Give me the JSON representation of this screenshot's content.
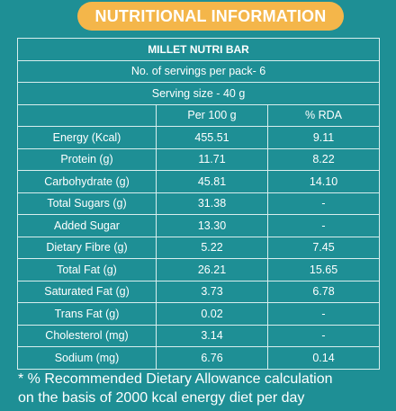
{
  "banner": "NUTRITIONAL INFORMATION",
  "product": "MILLET NUTRI BAR",
  "servings": "No. of servings per pack- 6",
  "serving_size": "Serving size - 40 g",
  "columns": {
    "per100": "Per 100 g",
    "rda": "% RDA"
  },
  "rows": [
    {
      "name": "Energy (Kcal)",
      "per100": "455.51",
      "rda": "9.11"
    },
    {
      "name": "Protein (g)",
      "per100": "11.71",
      "rda": "8.22"
    },
    {
      "name": "Carbohydrate (g)",
      "per100": "45.81",
      "rda": "14.10"
    },
    {
      "name": "Total Sugars (g)",
      "per100": "31.38",
      "rda": "-"
    },
    {
      "name": "Added Sugar",
      "per100": "13.30",
      "rda": "-"
    },
    {
      "name": "Dietary Fibre (g)",
      "per100": "5.22",
      "rda": "7.45"
    },
    {
      "name": "Total Fat (g)",
      "per100": "26.21",
      "rda": "15.65"
    },
    {
      "name": "Saturated Fat (g)",
      "per100": "3.73",
      "rda": "6.78"
    },
    {
      "name": "Trans Fat (g)",
      "per100": "0.02",
      "rda": "-"
    },
    {
      "name": "Cholesterol (mg)",
      "per100": "3.14",
      "rda": "-"
    },
    {
      "name": "Sodium (mg)",
      "per100": "6.76",
      "rda": "0.14"
    }
  ],
  "footnote": {
    "line1": "* % Recommended Dietary Allowance calculation",
    "line2": "on the basis of 2000 kcal energy diet per day"
  }
}
